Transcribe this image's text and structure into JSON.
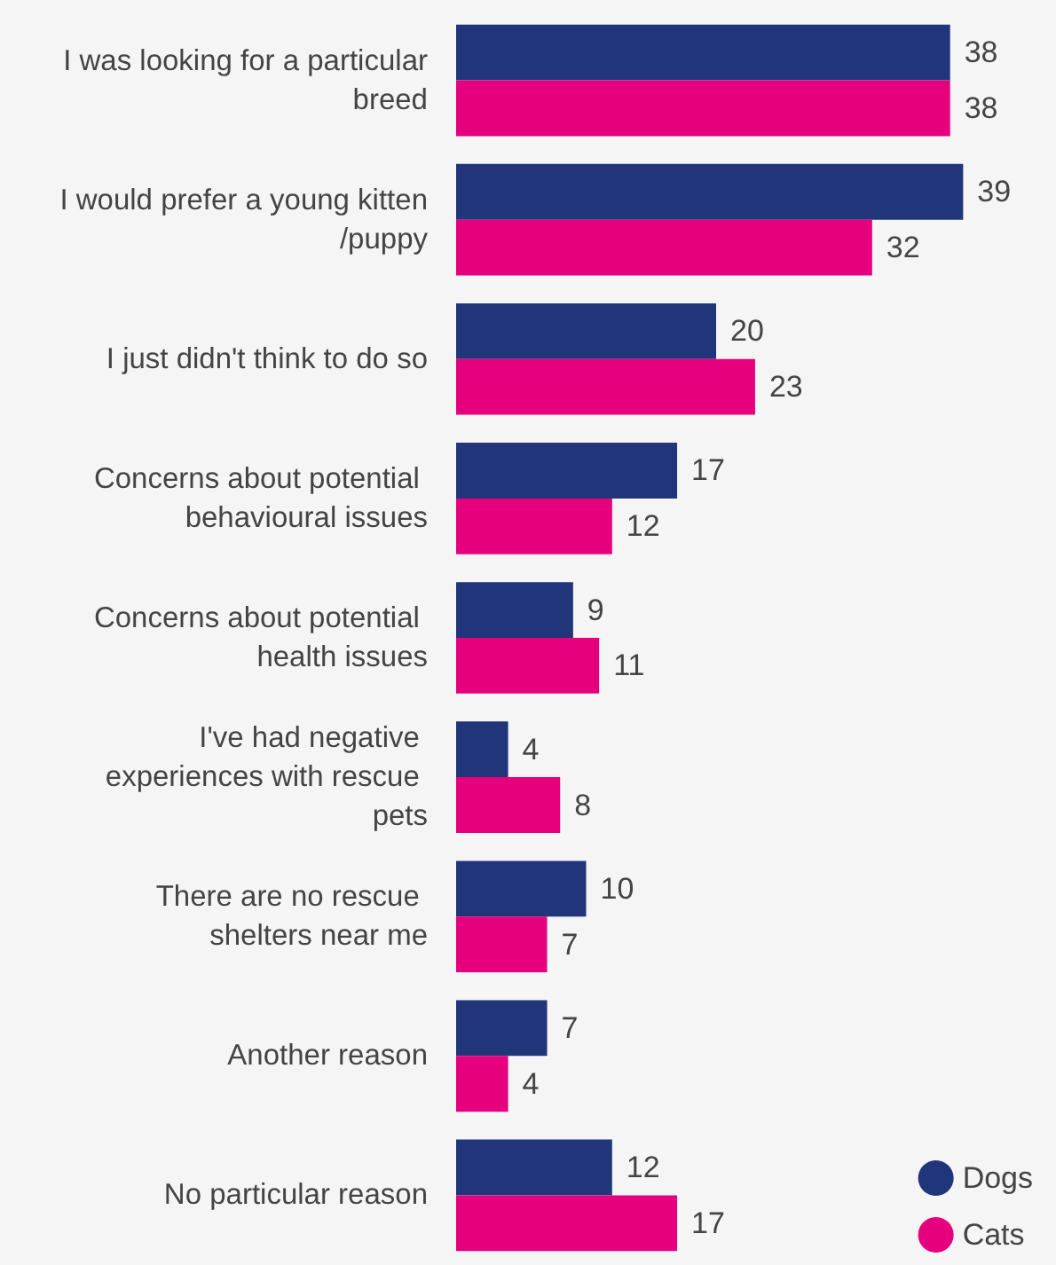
{
  "chart_data": {
    "type": "bar",
    "orientation": "horizontal",
    "data_labels": true,
    "legend": "bottom right",
    "categories": [
      "I was looking for a particular breed",
      "I would prefer a young kitten/puppy",
      "I just didn't think to do so",
      "Concerns about potential behavioural issues",
      "Concerns about potential health issues",
      "I've had negative experiences with rescue pets",
      "There are no rescue shelters near me",
      "Another reason",
      "No particular reason"
    ],
    "series": [
      {
        "name": "Dogs",
        "color": "#21357a",
        "values": [
          38,
          39,
          20,
          17,
          9,
          4,
          10,
          7,
          12
        ]
      },
      {
        "name": "Cats",
        "color": "#e6007e",
        "values": [
          38,
          32,
          23,
          12,
          11,
          8,
          7,
          4,
          17
        ]
      }
    ]
  }
}
